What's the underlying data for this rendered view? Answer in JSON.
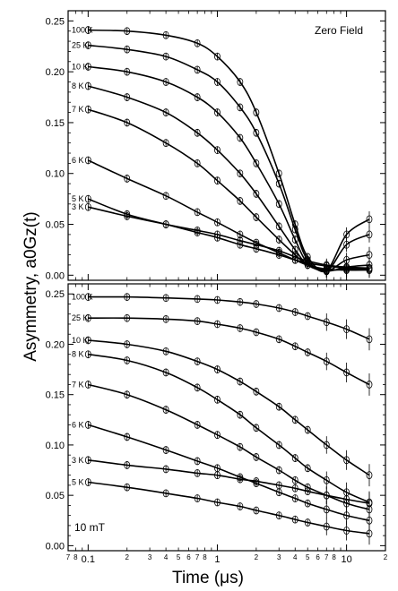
{
  "chart_data": {
    "type": "scatter",
    "ylabel": "Asymmetry, a0Gz(t)",
    "xlabel": "Time (μs)",
    "x_scale": "log",
    "xlim": [
      0.07,
      20
    ],
    "x_major_tick_labels": [
      "0.1",
      "1",
      "10"
    ],
    "x_minor_tick_labels": [
      "7",
      "8",
      "2",
      "3",
      "4",
      "5",
      "6",
      "7",
      "8",
      "2",
      "3",
      "4",
      "5",
      "6",
      "7",
      "8",
      "2"
    ],
    "panels": [
      {
        "annotation": "Zero Field",
        "ylim": [
          -0.005,
          0.26
        ],
        "y_tick_labels": [
          "0.00",
          "0.05",
          "0.10",
          "0.15",
          "0.20",
          "0.25"
        ],
        "series": [
          {
            "name": "100 K",
            "x": [
              0.1,
              0.2,
              0.4,
              0.7,
              1,
              1.5,
              2,
              3,
              4,
              5,
              7,
              10,
              15
            ],
            "y": [
              0.241,
              0.24,
              0.236,
              0.228,
              0.215,
              0.19,
              0.16,
              0.1,
              0.05,
              0.018,
              0.005,
              0.04,
              0.055
            ]
          },
          {
            "name": "25 K",
            "x": [
              0.1,
              0.2,
              0.4,
              0.7,
              1,
              1.5,
              2,
              3,
              4,
              5,
              7,
              10,
              15
            ],
            "y": [
              0.226,
              0.222,
              0.215,
              0.202,
              0.19,
              0.165,
              0.14,
              0.09,
              0.045,
              0.015,
              0.004,
              0.03,
              0.04
            ]
          },
          {
            "name": "10 K",
            "x": [
              0.1,
              0.2,
              0.4,
              0.7,
              1,
              1.5,
              2,
              3,
              4,
              5,
              7,
              10,
              15
            ],
            "y": [
              0.205,
              0.2,
              0.19,
              0.175,
              0.16,
              0.135,
              0.11,
              0.07,
              0.035,
              0.012,
              0.004,
              0.015,
              0.02
            ]
          },
          {
            "name": "8 K",
            "x": [
              0.1,
              0.2,
              0.4,
              0.7,
              1,
              1.5,
              2,
              3,
              4,
              5,
              7,
              10,
              15
            ],
            "y": [
              0.186,
              0.175,
              0.16,
              0.14,
              0.123,
              0.1,
              0.08,
              0.048,
              0.025,
              0.01,
              0.004,
              0.008,
              0.01
            ]
          },
          {
            "name": "7 K",
            "x": [
              0.1,
              0.2,
              0.4,
              0.7,
              1,
              1.5,
              2,
              3,
              4,
              5,
              7,
              10,
              15
            ],
            "y": [
              0.163,
              0.15,
              0.13,
              0.11,
              0.093,
              0.073,
              0.057,
              0.035,
              0.02,
              0.01,
              0.005,
              0.006,
              0.007
            ]
          },
          {
            "name": "6 K",
            "x": [
              0.1,
              0.2,
              0.4,
              0.7,
              1,
              1.5,
              2,
              3,
              4,
              5,
              7,
              10,
              15
            ],
            "y": [
              0.113,
              0.095,
              0.078,
              0.062,
              0.052,
              0.04,
              0.032,
              0.022,
              0.015,
              0.01,
              0.006,
              0.005,
              0.005
            ]
          },
          {
            "name": "5 K",
            "x": [
              0.1,
              0.2,
              0.4,
              0.7,
              1,
              1.5,
              2,
              3,
              4,
              5,
              7,
              10,
              15
            ],
            "y": [
              0.075,
              0.06,
              0.05,
              0.042,
              0.037,
              0.03,
              0.026,
              0.02,
              0.015,
              0.012,
              0.009,
              0.007,
              0.006
            ]
          },
          {
            "name": "3 K",
            "x": [
              0.1,
              0.2,
              0.4,
              0.7,
              1,
              1.5,
              2,
              3,
              4,
              5,
              7,
              10,
              15
            ],
            "y": [
              0.067,
              0.058,
              0.05,
              0.044,
              0.04,
              0.034,
              0.03,
              0.024,
              0.018,
              0.014,
              0.01,
              0.008,
              0.007
            ]
          }
        ]
      },
      {
        "annotation": "10 mT",
        "ylim": [
          -0.005,
          0.26
        ],
        "y_tick_labels": [
          "0.00",
          "0.05",
          "0.10",
          "0.15",
          "0.20",
          "0.25"
        ],
        "series": [
          {
            "name": "100 K",
            "x": [
              0.1,
              0.2,
              0.4,
              0.7,
              1,
              1.5,
              2,
              3,
              4,
              5,
              7,
              10,
              15
            ],
            "y": [
              0.247,
              0.247,
              0.246,
              0.245,
              0.244,
              0.242,
              0.24,
              0.236,
              0.232,
              0.228,
              0.222,
              0.215,
              0.205
            ]
          },
          {
            "name": "25 K",
            "x": [
              0.1,
              0.2,
              0.4,
              0.7,
              1,
              1.5,
              2,
              3,
              4,
              5,
              7,
              10,
              15
            ],
            "y": [
              0.226,
              0.226,
              0.225,
              0.223,
              0.22,
              0.216,
              0.212,
              0.205,
              0.198,
              0.192,
              0.183,
              0.172,
              0.16
            ]
          },
          {
            "name": "10 K",
            "x": [
              0.1,
              0.2,
              0.4,
              0.7,
              1,
              1.5,
              2,
              3,
              4,
              5,
              7,
              10,
              15
            ],
            "y": [
              0.204,
              0.2,
              0.193,
              0.183,
              0.175,
              0.163,
              0.153,
              0.138,
              0.125,
              0.115,
              0.1,
              0.085,
              0.07
            ]
          },
          {
            "name": "8 K",
            "x": [
              0.1,
              0.2,
              0.4,
              0.7,
              1,
              1.5,
              2,
              3,
              4,
              5,
              7,
              10,
              15
            ],
            "y": [
              0.19,
              0.184,
              0.172,
              0.157,
              0.145,
              0.13,
              0.117,
              0.1,
              0.087,
              0.077,
              0.065,
              0.053,
              0.043
            ]
          },
          {
            "name": "7 K",
            "x": [
              0.1,
              0.2,
              0.4,
              0.7,
              1,
              1.5,
              2,
              3,
              4,
              5,
              7,
              10,
              15
            ],
            "y": [
              0.16,
              0.15,
              0.135,
              0.12,
              0.11,
              0.098,
              0.088,
              0.075,
              0.065,
              0.058,
              0.05,
              0.042,
              0.036
            ]
          },
          {
            "name": "6 K",
            "x": [
              0.1,
              0.2,
              0.4,
              0.7,
              1,
              1.5,
              2,
              3,
              4,
              5,
              7,
              10,
              15
            ],
            "y": [
              0.12,
              0.108,
              0.095,
              0.084,
              0.077,
              0.068,
              0.062,
              0.053,
              0.047,
              0.042,
              0.036,
              0.03,
              0.025
            ]
          },
          {
            "name": "3 K",
            "x": [
              0.1,
              0.2,
              0.4,
              0.7,
              1,
              1.5,
              2,
              3,
              4,
              5,
              7,
              10,
              15
            ],
            "y": [
              0.085,
              0.08,
              0.076,
              0.072,
              0.07,
              0.066,
              0.064,
              0.06,
              0.057,
              0.054,
              0.05,
              0.046,
              0.042
            ]
          },
          {
            "name": "5 K",
            "x": [
              0.1,
              0.2,
              0.4,
              0.7,
              1,
              1.5,
              2,
              3,
              4,
              5,
              7,
              10,
              15
            ],
            "y": [
              0.063,
              0.058,
              0.052,
              0.047,
              0.043,
              0.039,
              0.035,
              0.03,
              0.026,
              0.023,
              0.019,
              0.015,
              0.012
            ]
          }
        ]
      }
    ],
    "colors": {
      "axis": "#000000",
      "markers": "#000000",
      "background": "#ffffff"
    }
  }
}
